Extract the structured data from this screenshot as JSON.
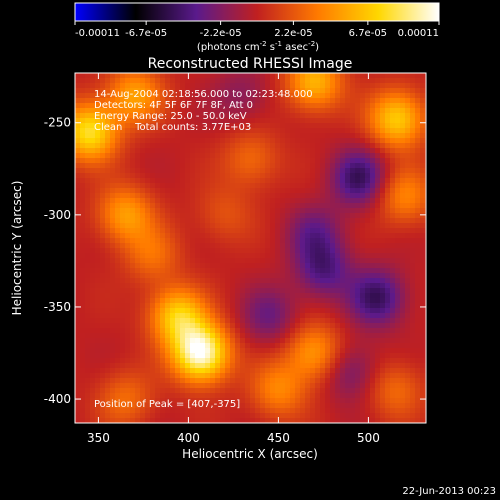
{
  "colorbar": {
    "tick_labels": [
      "-0.00011",
      "-6.7e-05",
      "-2.2e-05",
      "2.2e-05",
      "6.7e-05",
      "0.00011"
    ],
    "tick_values": [
      -0.00011,
      -6.7e-05,
      -2.2e-05,
      2.2e-05,
      6.7e-05,
      0.00011
    ],
    "unit_main": "(photons cm",
    "unit_exp1": "-2",
    "unit_mid": " s",
    "unit_exp2": "-1",
    "unit_mid2": " asec",
    "unit_exp3": "-2",
    "unit_end": ")",
    "colors": [
      "#0000ff",
      "#000000",
      "#5a1a8c",
      "#c02020",
      "#ff7a00",
      "#ffd700",
      "#ffffff"
    ]
  },
  "chart_data": {
    "type": "heatmap",
    "title": "Reconstructed RHESSI Image",
    "xlabel": "Heliocentric X (arcsec)",
    "ylabel": "Heliocentric Y (arcsec)",
    "xlim": [
      337,
      532
    ],
    "ylim": [
      -413,
      -223
    ],
    "x_ticks": [
      350,
      400,
      450,
      500
    ],
    "y_ticks": [
      -400,
      -350,
      -300,
      -250
    ],
    "info_lines": [
      "14-Aug-2004 02:18:56.000 to 02:23:48.000",
      "Detectors: 4F 5F 6F 7F 8F, Att 0",
      "Energy Range: 25.0 - 50.0 keV",
      "Clean    Total counts: 3.77E+03"
    ],
    "peak_label": "Position of Peak = [407,-375]",
    "peak": [
      407,
      -375
    ],
    "hotspots": [
      {
        "x": 407,
        "y": -375,
        "value": 0.00011
      },
      {
        "x": 394,
        "y": -355,
        "value": 7e-05
      },
      {
        "x": 345,
        "y": -255,
        "value": 8e-05
      },
      {
        "x": 370,
        "y": -235,
        "value": 5e-05
      },
      {
        "x": 365,
        "y": -300,
        "value": 5e-05
      },
      {
        "x": 380,
        "y": -322,
        "value": 3e-05
      },
      {
        "x": 470,
        "y": -228,
        "value": 6e-05
      },
      {
        "x": 516,
        "y": -248,
        "value": 7e-05
      },
      {
        "x": 520,
        "y": -290,
        "value": 4e-05
      },
      {
        "x": 470,
        "y": -375,
        "value": 5e-05
      },
      {
        "x": 450,
        "y": -395,
        "value": 4e-05
      },
      {
        "x": 435,
        "y": -270,
        "value": 3e-05
      },
      {
        "x": 515,
        "y": -395,
        "value": 3e-05
      },
      {
        "x": 420,
        "y": -300,
        "value": 2e-05
      },
      {
        "x": 365,
        "y": -400,
        "value": 3e-05
      }
    ],
    "coldspots": [
      {
        "x": 495,
        "y": -280,
        "value": -5e-05
      },
      {
        "x": 505,
        "y": -345,
        "value": -5e-05
      },
      {
        "x": 475,
        "y": -330,
        "value": -4e-05
      },
      {
        "x": 445,
        "y": -355,
        "value": -3e-05
      },
      {
        "x": 470,
        "y": -310,
        "value": -3e-05
      },
      {
        "x": 430,
        "y": -235,
        "value": -2e-05
      },
      {
        "x": 490,
        "y": -385,
        "value": -3e-05
      }
    ]
  },
  "footer": {
    "timestamp": "22-Jun-2013 00:23"
  }
}
